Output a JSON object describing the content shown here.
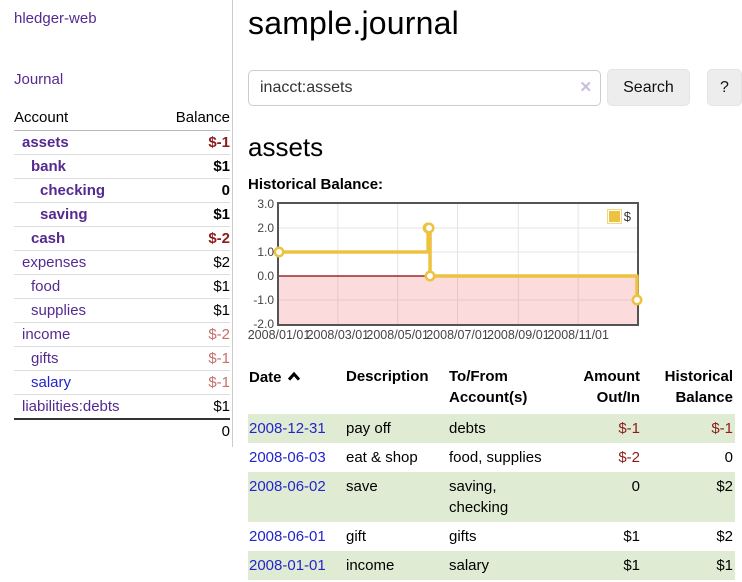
{
  "app": {
    "brand": "hledger-web",
    "nav_journal": "Journal"
  },
  "sidebar": {
    "header": {
      "account": "Account",
      "balance": "Balance"
    },
    "accounts": [
      {
        "name": "assets",
        "indent": 1,
        "balance": "$-1",
        "bold": true,
        "balance_style": "neg-strong",
        "blue": false
      },
      {
        "name": "bank",
        "indent": 2,
        "balance": "$1",
        "bold": true,
        "balance_style": "pos",
        "blue": false
      },
      {
        "name": "checking",
        "indent": 3,
        "balance": "0",
        "bold": true,
        "balance_style": "pos",
        "blue": false
      },
      {
        "name": "saving",
        "indent": 3,
        "balance": "$1",
        "bold": true,
        "balance_style": "pos",
        "blue": false
      },
      {
        "name": "cash",
        "indent": 2,
        "balance": "$-2",
        "bold": true,
        "balance_style": "neg-strong",
        "blue": false
      },
      {
        "name": "expenses",
        "indent": 1,
        "balance": "$2",
        "bold": false,
        "balance_style": "pos",
        "blue": false
      },
      {
        "name": "food",
        "indent": 2,
        "balance": "$1",
        "bold": false,
        "balance_style": "pos",
        "blue": false
      },
      {
        "name": "supplies",
        "indent": 2,
        "balance": "$1",
        "bold": false,
        "balance_style": "pos",
        "blue": false
      },
      {
        "name": "income",
        "indent": 1,
        "balance": "$-2",
        "bold": false,
        "balance_style": "neg-muted",
        "blue": false
      },
      {
        "name": "gifts",
        "indent": 2,
        "balance": "$-1",
        "bold": false,
        "balance_style": "neg-muted",
        "blue": false
      },
      {
        "name": "salary",
        "indent": 2,
        "balance": "$-1",
        "bold": false,
        "balance_style": "neg-muted",
        "blue": true
      },
      {
        "name": "liabilities:debts",
        "indent": 1,
        "balance": "$1",
        "bold": false,
        "balance_style": "pos",
        "blue": false
      }
    ],
    "total": "0"
  },
  "header": {
    "title": "sample.journal"
  },
  "search": {
    "value": "inacct:assets",
    "clear_icon": "✕",
    "button": "Search",
    "help_button": "?"
  },
  "main": {
    "account_title": "assets",
    "chart_label": "Historical Balance:"
  },
  "chart_data": {
    "type": "line",
    "title": "Historical Balance:",
    "steps": true,
    "x_range": [
      "2008-01-01",
      "2008-12-31"
    ],
    "ylim": [
      -2,
      3
    ],
    "yticks": [
      {
        "label": "3.0",
        "value": 3
      },
      {
        "label": "2.0",
        "value": 2
      },
      {
        "label": "1.0",
        "value": 1
      },
      {
        "label": "0.0",
        "value": 0
      },
      {
        "label": "-1.0",
        "value": -1
      },
      {
        "label": "-2.0",
        "value": -2
      }
    ],
    "xticks": [
      {
        "label": "2008/01/01",
        "date": "2008-01-01"
      },
      {
        "label": "2008/03/01",
        "date": "2008-03-01"
      },
      {
        "label": "2008/05/01",
        "date": "2008-05-01"
      },
      {
        "label": "2008/07/01",
        "date": "2008-07-01"
      },
      {
        "label": "2008/09/01",
        "date": "2008-09-01"
      },
      {
        "label": "2008/11/01",
        "date": "2008-11-01"
      }
    ],
    "series": [
      {
        "name": "$",
        "color": "#EDC240",
        "points": [
          {
            "date": "2008-01-01",
            "value": 1
          },
          {
            "date": "2008-06-01",
            "value": 2
          },
          {
            "date": "2008-06-02",
            "value": 2
          },
          {
            "date": "2008-06-03",
            "value": 0
          },
          {
            "date": "2008-12-31",
            "value": -1
          }
        ]
      }
    ],
    "legend_position": "top-right",
    "grid": true,
    "zero_line_color": "#8b0000",
    "negative_fill": "rgba(240,110,110,0.25)"
  },
  "register": {
    "columns": {
      "date": "Date",
      "description": "Description",
      "accounts_line1": "To/From",
      "accounts_line2": "Account(s)",
      "amount_line1": "Amount",
      "amount_line2": "Out/In",
      "balance_line1": "Historical",
      "balance_line2": "Balance"
    },
    "rows": [
      {
        "date": "2008-12-31",
        "description": "pay off",
        "accounts": "debts",
        "amount": "$-1",
        "amount_style": "neg-strong",
        "balance": "$-1",
        "balance_style": "neg-strong"
      },
      {
        "date": "2008-06-03",
        "description": "eat & shop",
        "accounts": "food, supplies",
        "amount": "$-2",
        "amount_style": "neg-strong",
        "balance": "0",
        "balance_style": "pos"
      },
      {
        "date": "2008-06-02",
        "description": "save",
        "accounts": "saving, checking",
        "amount": "0",
        "amount_style": "pos",
        "balance": "$2",
        "balance_style": "pos"
      },
      {
        "date": "2008-06-01",
        "description": "gift",
        "accounts": "gifts",
        "amount": "$1",
        "amount_style": "pos",
        "balance": "$2",
        "balance_style": "pos"
      },
      {
        "date": "2008-01-01",
        "description": "income",
        "accounts": "salary",
        "amount": "$1",
        "amount_style": "pos",
        "balance": "$1",
        "balance_style": "pos"
      }
    ]
  }
}
